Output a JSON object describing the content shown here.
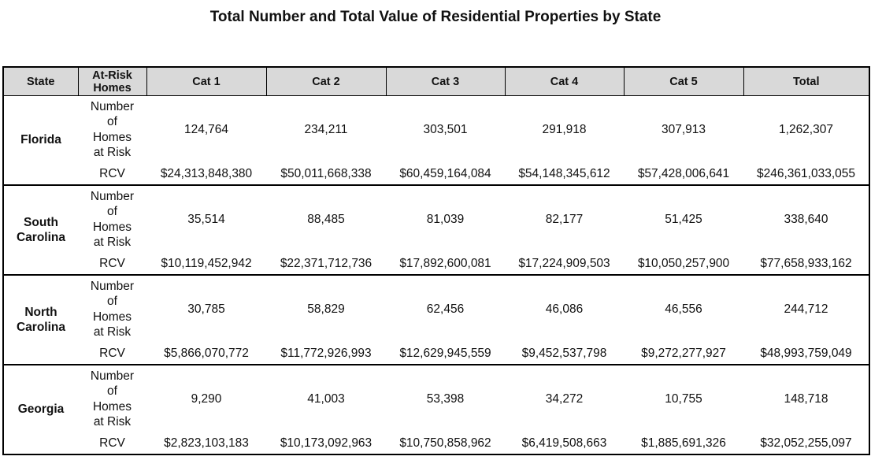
{
  "title": "Total Number and Total Value of Residential Properties by State",
  "columns": [
    "State",
    "At-Risk Homes",
    "Cat 1",
    "Cat 2",
    "Cat 3",
    "Cat 4",
    "Cat 5",
    "Total"
  ],
  "row_labels": {
    "number": "Number of Homes at Risk",
    "rcv": "RCV"
  },
  "states": [
    {
      "name": "Florida",
      "number": [
        "124,764",
        "234,211",
        "303,501",
        "291,918",
        "307,913",
        "1,262,307"
      ],
      "rcv": [
        "$24,313,848,380",
        "$50,011,668,338",
        "$60,459,164,084",
        "$54,148,345,612",
        "$57,428,006,641",
        "$246,361,033,055"
      ]
    },
    {
      "name": "South Carolina",
      "number": [
        "35,514",
        "88,485",
        "81,039",
        "82,177",
        "51,425",
        "338,640"
      ],
      "rcv": [
        "$10,119,452,942",
        "$22,371,712,736",
        "$17,892,600,081",
        "$17,224,909,503",
        "$10,050,257,900",
        "$77,658,933,162"
      ]
    },
    {
      "name": "North Carolina",
      "number": [
        "30,785",
        "58,829",
        "62,456",
        "46,086",
        "46,556",
        "244,712"
      ],
      "rcv": [
        "$5,866,070,772",
        "$11,772,926,993",
        "$12,629,945,559",
        "$9,452,537,798",
        "$9,272,277,927",
        "$48,993,759,049"
      ]
    },
    {
      "name": "Georgia",
      "number": [
        "9,290",
        "41,003",
        "53,398",
        "34,272",
        "10,755",
        "148,718"
      ],
      "rcv": [
        "$2,823,103,183",
        "$10,173,092,963",
        "$10,750,858,962",
        "$6,419,508,663",
        "$1,885,691,326",
        "$32,052,255,097"
      ]
    }
  ]
}
